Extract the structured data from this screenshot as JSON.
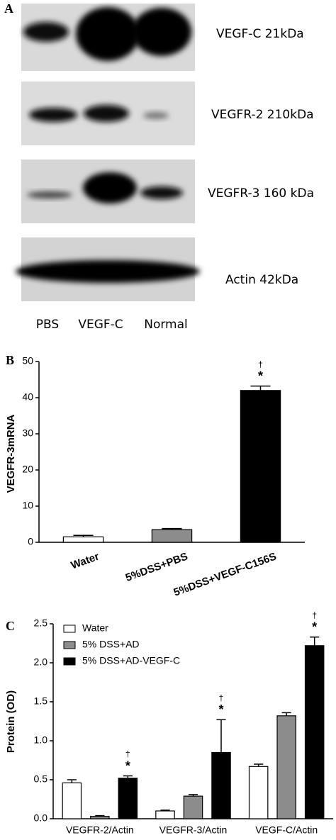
{
  "panel_a": {
    "label": "A",
    "blots": [
      "VEGF-C 21kDa",
      "VEGFR-2 210kDa",
      "VEGFR-3 160 kDa",
      "Actin 42kDa"
    ],
    "lanes": [
      "PBS",
      "VEGF-C",
      "Normal"
    ]
  },
  "chart_data": [
    {
      "type": "bar",
      "panel_label": "B",
      "y_label": "VEGFR-3mRNA",
      "categories": [
        "Water",
        "5%DSS+PBS",
        "5%DSS+VEGF-C156S"
      ],
      "values": [
        1.5,
        3.5,
        42
      ],
      "errors": [
        0.4,
        0.3,
        1.2
      ],
      "colors": [
        "#ffffff",
        "#8c8c8c",
        "#000000"
      ],
      "significance": [
        null,
        null,
        "*"
      ],
      "significance_dagger": [
        null,
        null,
        "†"
      ],
      "ylim": [
        0,
        50
      ],
      "yticks": [
        0,
        10,
        20,
        30,
        40,
        50
      ]
    },
    {
      "type": "bar",
      "panel_label": "C",
      "y_label": "Protein (OD)",
      "categories": [
        "VEGFR-2/Actin",
        "VEGFR-3/Actin",
        "VEGF-C/Actin"
      ],
      "series": [
        {
          "name": "Water",
          "color": "#ffffff",
          "values": [
            0.46,
            0.1,
            0.67
          ],
          "errors": [
            0.04,
            0.01,
            0.03
          ]
        },
        {
          "name": "5% DSS+AD",
          "color": "#8c8c8c",
          "values": [
            0.03,
            0.29,
            1.32
          ],
          "errors": [
            0.01,
            0.02,
            0.04
          ]
        },
        {
          "name": "5% DSS+AD-VEGF-C",
          "color": "#000000",
          "values": [
            0.52,
            0.85,
            2.22
          ],
          "errors": [
            0.03,
            0.42,
            0.11
          ],
          "significance": [
            "*",
            "*",
            "*"
          ],
          "significance_dagger": [
            "†",
            "†",
            "†"
          ]
        }
      ],
      "legend": "top-left",
      "ylim": [
        0,
        2.5
      ],
      "yticks": [
        {
          "value": 0,
          "label": "0.0"
        },
        0.5,
        {
          "value": 1,
          "label": "1.0"
        },
        1.5,
        {
          "value": 2,
          "label": "2.0"
        },
        2.5
      ]
    }
  ]
}
